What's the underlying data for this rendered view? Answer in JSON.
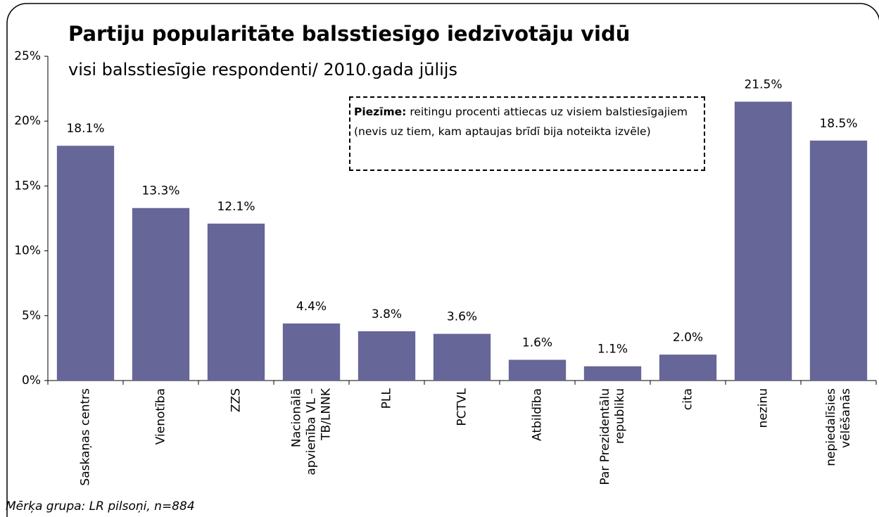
{
  "chart_data": {
    "type": "bar",
    "title": "Partiju popularitāte balsstiesīgo iedzīvotāju vidū",
    "subtitle": "visi balsstiesīgie respondenti/ 2010.gada jūlijs",
    "note": {
      "label": "Piezīme:",
      "text": "reitingu procenti attiecas uz visiem balstiesīgajiem (nevis uz tiem, kam aptaujas brīdī bija noteikta izvēle)"
    },
    "footnote": "Mērķa grupa: LR pilsoņi, n=884",
    "categories": [
      "Saskaņas centrs",
      "Vienotība",
      "ZZS",
      "Nacionālā\napvienība VL –\nTB/LNNK",
      "PLL",
      "PCTVL",
      "Atbildība",
      "Par Prezidentālu\nrepubliku",
      "cita",
      "nezinu",
      "nepiedalīsies\nvēlēšanās"
    ],
    "values": [
      18.1,
      13.3,
      12.1,
      4.4,
      3.8,
      3.6,
      1.6,
      1.1,
      2.0,
      21.5,
      18.5
    ],
    "value_labels": [
      "18.1%",
      "13.3%",
      "12.1%",
      "4.4%",
      "3.8%",
      "3.6%",
      "1.6%",
      "1.1%",
      "2.0%",
      "21.5%",
      "18.5%"
    ],
    "color": "#666699",
    "ylim": [
      0,
      25
    ],
    "yticks": [
      {
        "value": 0,
        "label": "0%"
      },
      {
        "value": 5,
        "label": "5%"
      },
      {
        "value": 10,
        "label": "10%"
      },
      {
        "value": 15,
        "label": "15%"
      },
      {
        "value": 20,
        "label": "20%"
      },
      {
        "value": 25,
        "label": "25%"
      }
    ],
    "grid": false
  }
}
